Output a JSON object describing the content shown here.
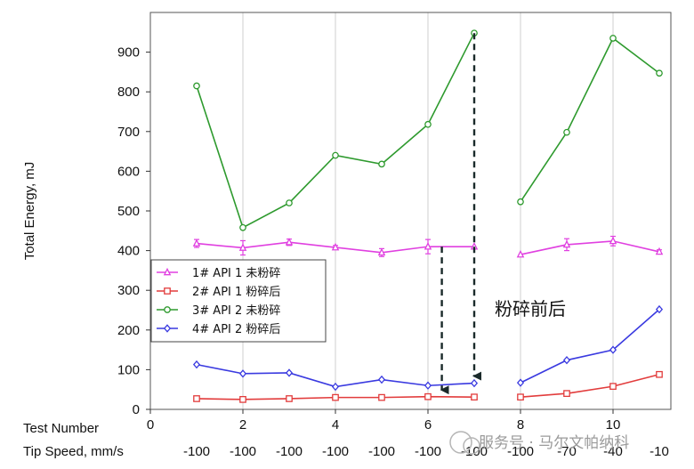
{
  "chart_data": {
    "type": "line",
    "title": "",
    "ylabel": "Total Energy, mJ",
    "xlabel": "Test Number",
    "xlim": [
      0,
      11.25
    ],
    "ylim": [
      0,
      1000
    ],
    "x_ticks": [
      0,
      2,
      4,
      6,
      8,
      10
    ],
    "y_ticks": [
      0,
      100,
      200,
      300,
      400,
      500,
      600,
      700,
      800,
      900
    ],
    "grid": "vertical",
    "legend_position": "center-left",
    "secondary_axis": {
      "label": "Tip Speed, mm/s",
      "values": [
        {
          "x": 1,
          "label": "-100"
        },
        {
          "x": 2,
          "label": "-100"
        },
        {
          "x": 3,
          "label": "-100"
        },
        {
          "x": 4,
          "label": "-100"
        },
        {
          "x": 5,
          "label": "-100"
        },
        {
          "x": 6,
          "label": "-100"
        },
        {
          "x": 7,
          "label": "-100"
        },
        {
          "x": 8,
          "label": "-100"
        },
        {
          "x": 9,
          "label": "-70"
        },
        {
          "x": 10,
          "label": "-40"
        },
        {
          "x": 11,
          "label": "-10"
        }
      ]
    },
    "series": [
      {
        "name": "1# API 1 未粉碎",
        "color": "#e040e0",
        "marker": "triangle",
        "x": [
          1,
          2,
          3,
          4,
          5,
          6,
          7,
          8,
          9,
          10,
          11
        ],
        "values": [
          418,
          407,
          421,
          408,
          395,
          410,
          410,
          390,
          415,
          424,
          397
        ],
        "errors": [
          10,
          18,
          8,
          5,
          10,
          18,
          0,
          0,
          15,
          12,
          5
        ]
      },
      {
        "name": "2# API 1 粉碎后",
        "color": "#e23c3c",
        "marker": "square",
        "x": [
          1,
          2,
          3,
          4,
          5,
          6,
          7,
          8,
          9,
          10,
          11
        ],
        "values": [
          27,
          25,
          27,
          30,
          30,
          32,
          31,
          31,
          40,
          58,
          88
        ],
        "errors": [
          0,
          0,
          0,
          0,
          0,
          0,
          0,
          0,
          0,
          0,
          5
        ]
      },
      {
        "name": "3# API 2 未粉碎",
        "color": "#2e9a2e",
        "marker": "circle",
        "x": [
          1,
          2,
          3,
          4,
          5,
          6,
          7,
          8,
          9,
          10,
          11
        ],
        "values": [
          815,
          458,
          520,
          640,
          618,
          718,
          948,
          523,
          698,
          935,
          847
        ],
        "errors": [
          0,
          0,
          0,
          0,
          0,
          0,
          0,
          0,
          0,
          0,
          0
        ]
      },
      {
        "name": "4# API 2 粉碎后",
        "color": "#3a3ae0",
        "marker": "diamond",
        "x": [
          1,
          2,
          3,
          4,
          5,
          6,
          7,
          8,
          9,
          10,
          11
        ],
        "values": [
          113,
          90,
          92,
          57,
          75,
          60,
          66,
          67,
          124,
          150,
          252
        ],
        "errors": [
          0,
          0,
          0,
          0,
          0,
          0,
          0,
          0,
          0,
          0,
          0
        ]
      }
    ],
    "annotations": {
      "text": "粉碎前后",
      "arrows": [
        {
          "x": 6.3,
          "from": 410,
          "to": 31
        },
        {
          "x": 7,
          "from": 948,
          "to": 66
        }
      ]
    },
    "watermark": "服务号 · 马尔文帕纳科"
  }
}
